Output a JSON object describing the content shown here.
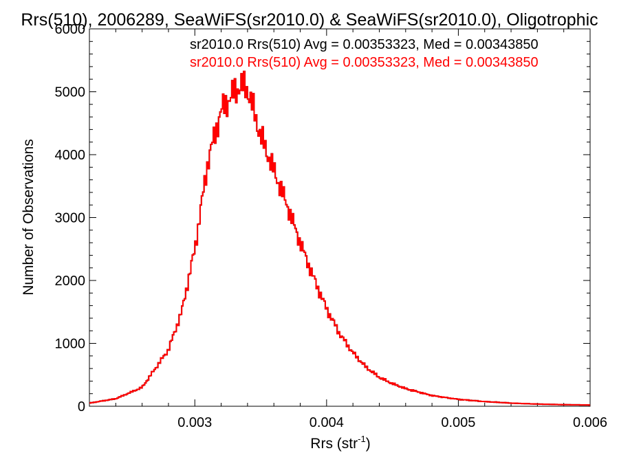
{
  "chart_data": {
    "type": "line",
    "title": "Rrs(510), 2006289, SeaWiFS(sr2010.0) & SeaWiFS(sr2010.0), Oligotrophic",
    "xlabel": "Rrs (str",
    "xlabel_sup": "-1",
    "xlabel_end": ")",
    "ylabel": "Number of Observations",
    "xlim": [
      0.0022,
      0.006
    ],
    "ylim": [
      0,
      6000
    ],
    "x_ticks": [
      0.003,
      0.004,
      0.005,
      0.006
    ],
    "x_tick_labels": [
      "0.003",
      "0.004",
      "0.005",
      "0.006"
    ],
    "y_ticks": [
      0,
      1000,
      2000,
      3000,
      4000,
      5000,
      6000
    ],
    "y_tick_labels": [
      "0",
      "1000",
      "2000",
      "3000",
      "4000",
      "5000",
      "6000"
    ],
    "legend_position": "top-right",
    "grid": false,
    "series": [
      {
        "name": "sr2010.0 Rrs(510) Avg = 0.00353323, Med = 0.00343850",
        "color": "#000000",
        "step": true,
        "x": [
          0.0022,
          0.0024,
          0.0026,
          0.0027,
          0.0028,
          0.0029,
          0.003,
          0.0031,
          0.0032,
          0.0033,
          0.00335,
          0.0034,
          0.0035,
          0.0036,
          0.0037,
          0.0038,
          0.0039,
          0.004,
          0.0041,
          0.0042,
          0.0043,
          0.0044,
          0.0045,
          0.0046,
          0.0048,
          0.005,
          0.0052,
          0.0054,
          0.0056,
          0.0058,
          0.006
        ],
        "y": [
          50,
          120,
          300,
          600,
          900,
          1500,
          2500,
          3900,
          4700,
          5000,
          5100,
          5050,
          4300,
          3750,
          3200,
          2600,
          2050,
          1550,
          1150,
          850,
          620,
          460,
          360,
          280,
          170,
          110,
          75,
          50,
          35,
          25,
          20
        ]
      },
      {
        "name": "sr2010.0 Rrs(510) Avg = 0.00353323, Med = 0.00343850",
        "color": "#ff0000",
        "step": true,
        "x": [
          0.0022,
          0.0024,
          0.0026,
          0.0027,
          0.0028,
          0.0029,
          0.003,
          0.0031,
          0.0032,
          0.0033,
          0.00335,
          0.0034,
          0.0035,
          0.0036,
          0.0037,
          0.0038,
          0.0039,
          0.004,
          0.0041,
          0.0042,
          0.0043,
          0.0044,
          0.0045,
          0.0046,
          0.0048,
          0.005,
          0.0052,
          0.0054,
          0.0056,
          0.0058,
          0.006
        ],
        "y": [
          50,
          120,
          300,
          600,
          900,
          1500,
          2500,
          3900,
          4700,
          5000,
          5100,
          5050,
          4300,
          3750,
          3200,
          2600,
          2050,
          1550,
          1150,
          850,
          620,
          460,
          360,
          280,
          170,
          110,
          75,
          50,
          35,
          25,
          20
        ]
      }
    ]
  }
}
